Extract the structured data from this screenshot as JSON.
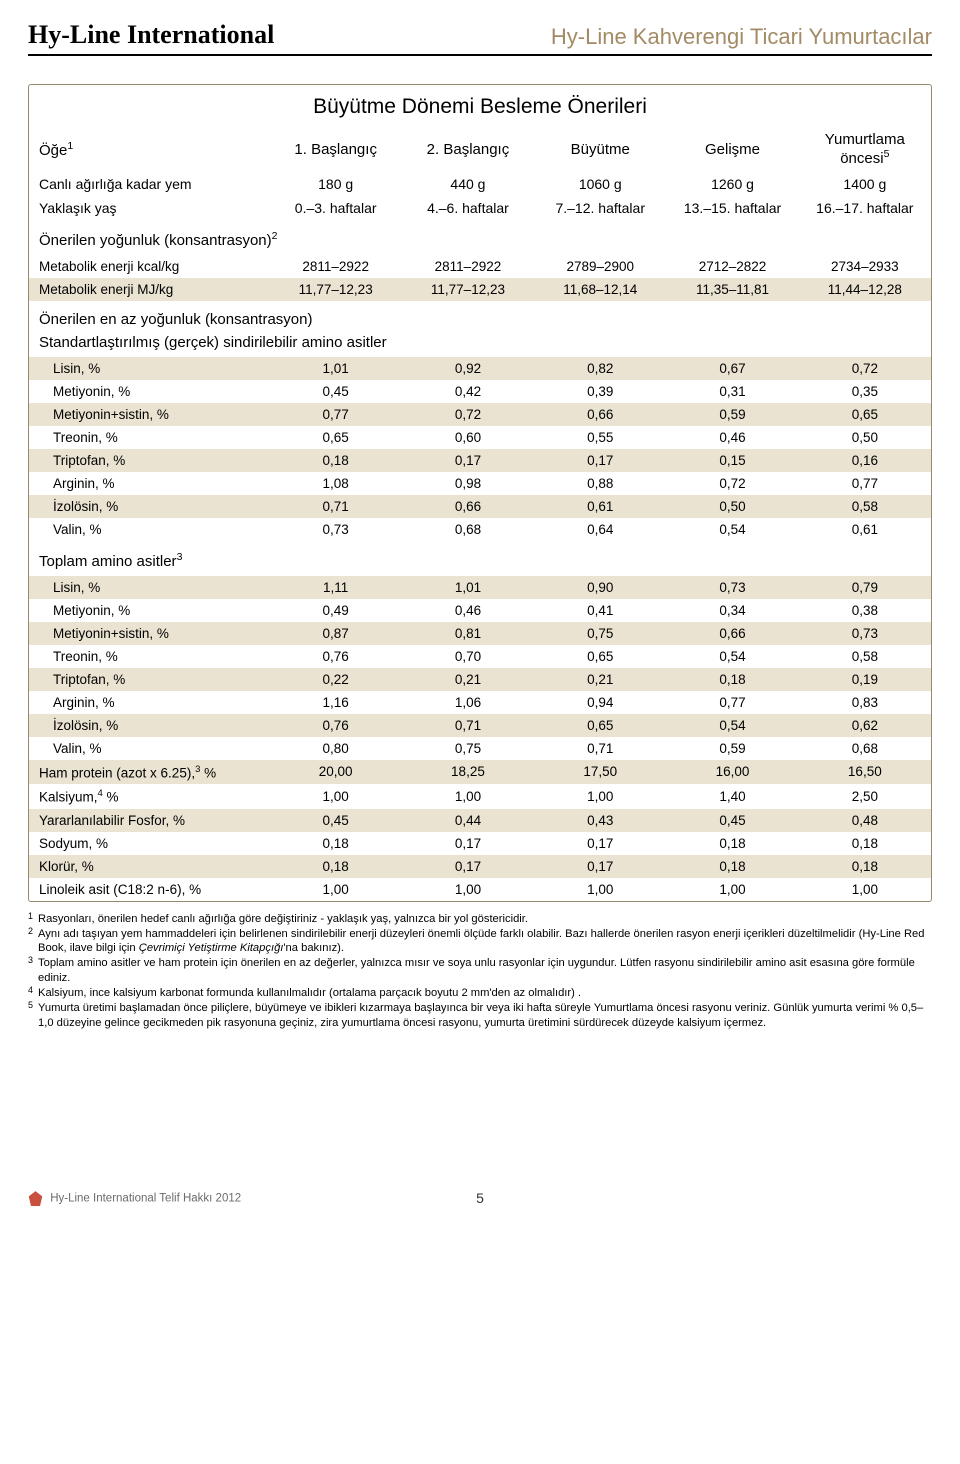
{
  "header": {
    "brand_left": "Hy-Line International",
    "brand_right": "Hy-Line Kahverengi Ticari Yumurtacılar"
  },
  "table": {
    "title": "Büyütme Dönemi Besleme Önerileri",
    "columns": [
      {
        "label": "Öğe",
        "sup": "1"
      },
      {
        "label": "1. Başlangıç"
      },
      {
        "label": "2. Başlangıç"
      },
      {
        "label": "Büyütme"
      },
      {
        "label": "Gelişme"
      },
      {
        "label_top": "Yumurtlama",
        "label_bot": "öncesi",
        "sup": "5"
      }
    ],
    "info_rows": [
      {
        "label": "Canlı ağırlığa kadar yem",
        "vals": [
          "180 g",
          "440 g",
          "1060 g",
          "1260 g",
          "1400 g"
        ]
      },
      {
        "label": "Yaklaşık yaş",
        "vals": [
          "0.–3. haftalar",
          "4.–6. haftalar",
          "7.–12. haftalar",
          "13.–15. haftalar",
          "16.–17. haftalar"
        ]
      }
    ],
    "sections": [
      {
        "heading": "Önerilen yoğunluk (konsantrasyon)",
        "heading_sup": "2",
        "rows": [
          {
            "label": "Metabolik enerji kcal/kg",
            "flush": true,
            "vals": [
              "2811–2922",
              "2811–2922",
              "2789–2900",
              "2712–2822",
              "2734–2933"
            ]
          },
          {
            "label": "Metabolik enerji MJ/kg",
            "flush": true,
            "stripe": true,
            "vals": [
              "11,77–12,23",
              "11,77–12,23",
              "11,68–12,14",
              "11,35–11,81",
              "11,44–12,28"
            ]
          }
        ]
      },
      {
        "heading": "Önerilen en az yoğunluk (konsantrasyon)",
        "subheading": "Standartlaştırılmış (gerçek) sindirilebilir amino asitler",
        "rows": [
          {
            "label": "Lisin, %",
            "stripe": true,
            "vals": [
              "1,01",
              "0,92",
              "0,82",
              "0,67",
              "0,72"
            ]
          },
          {
            "label": "Metiyonin, %",
            "vals": [
              "0,45",
              "0,42",
              "0,39",
              "0,31",
              "0,35"
            ]
          },
          {
            "label": "Metiyonin+sistin, %",
            "stripe": true,
            "vals": [
              "0,77",
              "0,72",
              "0,66",
              "0,59",
              "0,65"
            ]
          },
          {
            "label": "Treonin, %",
            "vals": [
              "0,65",
              "0,60",
              "0,55",
              "0,46",
              "0,50"
            ]
          },
          {
            "label": "Triptofan, %",
            "stripe": true,
            "vals": [
              "0,18",
              "0,17",
              "0,17",
              "0,15",
              "0,16"
            ]
          },
          {
            "label": "Arginin, %",
            "vals": [
              "1,08",
              "0,98",
              "0,88",
              "0,72",
              "0,77"
            ]
          },
          {
            "label": "İzolösin, %",
            "stripe": true,
            "vals": [
              "0,71",
              "0,66",
              "0,61",
              "0,50",
              "0,58"
            ]
          },
          {
            "label": "Valin, %",
            "vals": [
              "0,73",
              "0,68",
              "0,64",
              "0,54",
              "0,61"
            ]
          }
        ]
      },
      {
        "heading": "Toplam amino asitler",
        "heading_sup": "3",
        "rows": [
          {
            "label": "Lisin, %",
            "stripe": true,
            "vals": [
              "1,11",
              "1,01",
              "0,90",
              "0,73",
              "0,79"
            ]
          },
          {
            "label": "Metiyonin, %",
            "vals": [
              "0,49",
              "0,46",
              "0,41",
              "0,34",
              "0,38"
            ]
          },
          {
            "label": "Metiyonin+sistin, %",
            "stripe": true,
            "vals": [
              "0,87",
              "0,81",
              "0,75",
              "0,66",
              "0,73"
            ]
          },
          {
            "label": "Treonin, %",
            "vals": [
              "0,76",
              "0,70",
              "0,65",
              "0,54",
              "0,58"
            ]
          },
          {
            "label": "Triptofan, %",
            "stripe": true,
            "vals": [
              "0,22",
              "0,21",
              "0,21",
              "0,18",
              "0,19"
            ]
          },
          {
            "label": "Arginin, %",
            "vals": [
              "1,16",
              "1,06",
              "0,94",
              "0,77",
              "0,83"
            ]
          },
          {
            "label": "İzolösin, %",
            "stripe": true,
            "vals": [
              "0,76",
              "0,71",
              "0,65",
              "0,54",
              "0,62"
            ]
          },
          {
            "label": "Valin, %",
            "vals": [
              "0,80",
              "0,75",
              "0,71",
              "0,59",
              "0,68"
            ]
          }
        ]
      }
    ],
    "tail_rows": [
      {
        "label": "Ham protein  (azot x 6.25),",
        "label_sup": "3",
        "label_suffix": " %",
        "flush": true,
        "stripe": true,
        "vals": [
          "20,00",
          "18,25",
          "17,50",
          "16,00",
          "16,50"
        ]
      },
      {
        "label": "Kalsiyum,",
        "label_sup": "4",
        "label_suffix": " %",
        "flush": true,
        "vals": [
          "1,00",
          "1,00",
          "1,00",
          "1,40",
          "2,50"
        ]
      },
      {
        "label": "Yararlanılabilir Fosfor, %",
        "flush": true,
        "stripe": true,
        "vals": [
          "0,45",
          "0,44",
          "0,43",
          "0,45",
          "0,48"
        ]
      },
      {
        "label": "Sodyum, %",
        "flush": true,
        "vals": [
          "0,18",
          "0,17",
          "0,17",
          "0,18",
          "0,18"
        ]
      },
      {
        "label": "Klorür, %",
        "flush": true,
        "stripe": true,
        "vals": [
          "0,18",
          "0,17",
          "0,17",
          "0,18",
          "0,18"
        ]
      },
      {
        "label": "Linoleik asit (C18:2 n-6), %",
        "flush": true,
        "vals": [
          "1,00",
          "1,00",
          "1,00",
          "1,00",
          "1,00"
        ]
      }
    ]
  },
  "footnotes": [
    {
      "num": "1",
      "text": "Rasyonları, önerilen hedef canlı ağırlığa göre değiştiriniz - yaklaşık yaş, yalnızca bir yol göstericidir."
    },
    {
      "num": "2",
      "text": "Aynı adı taşıyan yem hammaddeleri için belirlenen sindirilebilir enerji düzeyleri önemli ölçüde farklı olabilir. Bazı hallerde önerilen rasyon enerji içerikleri düzeltilmelidir (Hy-Line Red Book, ilave bilgi için ",
      "italic": "Çevrimiçi Yetiştirme Kitapçığı",
      "text_after": "'na bakınız)."
    },
    {
      "num": "3",
      "text": "Toplam amino asitler ve ham protein için önerilen en az değerler, yalnızca mısır ve soya unlu rasyonlar için uygundur. Lütfen rasyonu sindirilebilir amino asit esasına göre formüle ediniz."
    },
    {
      "num": "4",
      "text": "Kalsiyum, ince kalsiyum karbonat formunda kullanılmalıdır (ortalama parçacık boyutu 2 mm'den az olmalıdır) ."
    },
    {
      "num": "5",
      "text": "Yumurta üretimi başlamadan önce piliçlere, büyümeye ve ibikleri kızarmaya başlayınca bir veya iki hafta süreyle Yumurtlama öncesi rasyonu veriniz. Günlük yumurta verimi % 0,5–1,0 düzeyine gelince gecikmeden pik rasyonuna geçiniz, zira yumurtlama öncesi rasyonu, yumurta üretimini sürdürecek düzeyde kalsiyum içermez."
    }
  ],
  "footer": {
    "copyright": "Hy-Line International Telif Hakkı 2012",
    "page_number": "5"
  },
  "colors": {
    "stripe_bg": "#eae3d2",
    "border": "#968a6e",
    "brand_right_color": "#a38b65",
    "logo_color": "#c94f3e"
  }
}
